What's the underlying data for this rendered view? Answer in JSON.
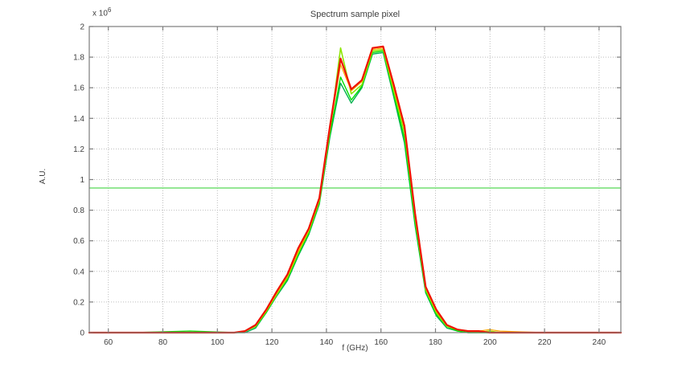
{
  "chart_data": {
    "type": "line",
    "title": "Spectrum sample pixel",
    "xlabel": "f (GHz)",
    "ylabel": "A.U.",
    "exponent": {
      "base": "x 10",
      "power": "6"
    },
    "xlim": [
      53,
      248
    ],
    "ylim": [
      0,
      2
    ],
    "y_unit_multiplier": 1000000,
    "xticks": [
      60,
      80,
      100,
      120,
      140,
      160,
      180,
      200,
      220,
      240
    ],
    "yticks": [
      0,
      0.2,
      0.4,
      0.6,
      0.8,
      1,
      1.2,
      1.4,
      1.6,
      1.8,
      2
    ],
    "grid": "dotted",
    "legend": "none",
    "colors": {
      "background": "#ffffff",
      "axis": "#7d7d7d",
      "grid": "#bdbdbd",
      "text": "#3f3f3f"
    },
    "x": [
      53,
      70,
      90,
      106.2,
      110.1,
      114,
      117.9,
      121.8,
      125.7,
      129.6,
      133.5,
      137.4,
      141.3,
      145.2,
      149.1,
      153,
      156.9,
      160.8,
      164.7,
      168.6,
      172.5,
      176.4,
      180.3,
      184.2,
      188.1,
      192,
      195.9,
      199.8,
      203.7,
      220,
      248
    ],
    "series": [
      {
        "name": "spectrum-dark-green",
        "color": "#00b050",
        "width": 1.4,
        "values": [
          0,
          0,
          0,
          0,
          0,
          0.03,
          0.13,
          0.24,
          0.34,
          0.5,
          0.64,
          0.84,
          1.28,
          1.63,
          1.5,
          1.6,
          1.82,
          1.83,
          1.54,
          1.24,
          0.7,
          0.26,
          0.11,
          0.03,
          0.01,
          0,
          0,
          0,
          0,
          0,
          0
        ]
      },
      {
        "name": "spectrum-green",
        "color": "#00e000",
        "width": 1.4,
        "values": [
          0,
          0,
          0.01,
          0,
          0.01,
          0.04,
          0.13,
          0.25,
          0.35,
          0.51,
          0.65,
          0.85,
          1.3,
          1.67,
          1.52,
          1.61,
          1.83,
          1.84,
          1.56,
          1.27,
          0.72,
          0.27,
          0.12,
          0.04,
          0.01,
          0,
          0,
          0,
          0,
          0,
          0
        ]
      },
      {
        "name": "spectrum-chartreuse",
        "color": "#8ce600",
        "width": 1.6,
        "values": [
          0,
          0,
          0,
          0,
          0.01,
          0.04,
          0.14,
          0.25,
          0.36,
          0.52,
          0.66,
          0.86,
          1.32,
          1.86,
          1.56,
          1.62,
          1.84,
          1.85,
          1.58,
          1.31,
          0.75,
          0.28,
          0.13,
          0.04,
          0.02,
          0.01,
          0,
          0.01,
          0,
          0,
          0
        ]
      },
      {
        "name": "spectrum-orange",
        "color": "#ffaa00",
        "width": 1.2,
        "values": [
          0,
          0,
          0,
          0,
          0.01,
          0.05,
          0.14,
          0.26,
          0.37,
          0.53,
          0.67,
          0.87,
          1.33,
          1.75,
          1.58,
          1.64,
          1.85,
          1.86,
          1.6,
          1.33,
          0.76,
          0.29,
          0.14,
          0.05,
          0.02,
          0.01,
          0.01,
          0.02,
          0.01,
          0,
          0
        ]
      },
      {
        "name": "spectrum-red",
        "color": "#ee1100",
        "width": 2.2,
        "values": [
          0,
          0,
          0,
          0,
          0.01,
          0.05,
          0.15,
          0.27,
          0.38,
          0.55,
          0.68,
          0.88,
          1.35,
          1.79,
          1.59,
          1.65,
          1.86,
          1.87,
          1.62,
          1.35,
          0.78,
          0.3,
          0.15,
          0.05,
          0.02,
          0.01,
          0.01,
          0,
          0,
          0,
          0
        ]
      }
    ],
    "threshold_line": {
      "name": "horizontal-reference-line",
      "value": 0.945,
      "color": "#70df70",
      "width": 1.4
    }
  }
}
